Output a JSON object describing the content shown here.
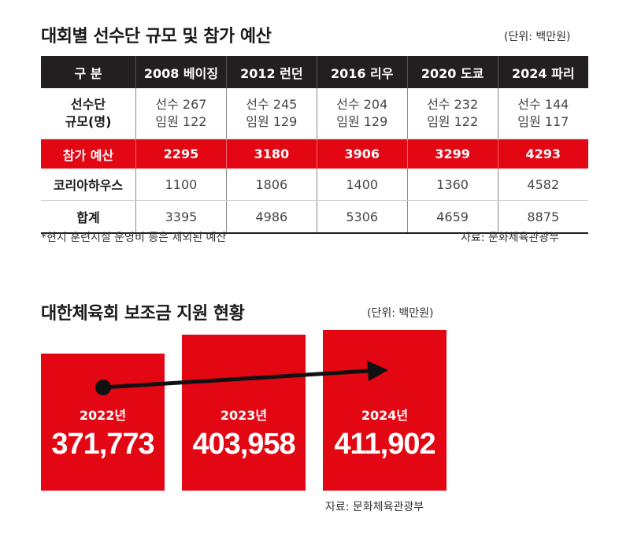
{
  "table_section": {
    "title": "대회별 선수단 규모 및 참가 예산",
    "unit": "(단위: 백만원)",
    "columns": [
      "구 분",
      "2008 베이징",
      "2012 런던",
      "2016 리우",
      "2020 도쿄",
      "2024 파리"
    ],
    "delegation": {
      "label_line1": "선수단",
      "label_line2": "규모(명)",
      "athletes": [
        "선수 267",
        "선수 245",
        "선수 204",
        "선수 232",
        "선수 144"
      ],
      "officials": [
        "임원 122",
        "임원 129",
        "임원 129",
        "임원 122",
        "임원 117"
      ]
    },
    "participation": {
      "label": "참가 예산",
      "values": [
        "2295",
        "3180",
        "3906",
        "3299",
        "4293"
      ]
    },
    "korea_house": {
      "label": "코리아하우스",
      "values": [
        "1100",
        "1806",
        "1400",
        "1360",
        "4582"
      ]
    },
    "total": {
      "label": "합계",
      "values": [
        "3395",
        "4986",
        "5306",
        "4659",
        "8875"
      ]
    },
    "footnote": "*현지 훈련시설 운영비 등은 제외된 예산",
    "source": "자료: 문화체육관광부"
  },
  "chart_section": {
    "title": "대한체육회 보조금 지원 현황",
    "unit": "(단위: 백만원)",
    "source": "자료: 문화체육관광부"
  },
  "chart_data": {
    "type": "bar",
    "title": "대한체육회 보조금 지원 현황",
    "categories": [
      "2022년",
      "2023년",
      "2024년"
    ],
    "values": [
      371773,
      403958,
      411902
    ],
    "value_labels": [
      "371,773",
      "403,958",
      "411,902"
    ],
    "bar_color": "#e30613",
    "trend_arrow": true,
    "arrow_color": "#111111"
  },
  "colors": {
    "header_bg": "#231f20",
    "accent": "#e30613"
  }
}
